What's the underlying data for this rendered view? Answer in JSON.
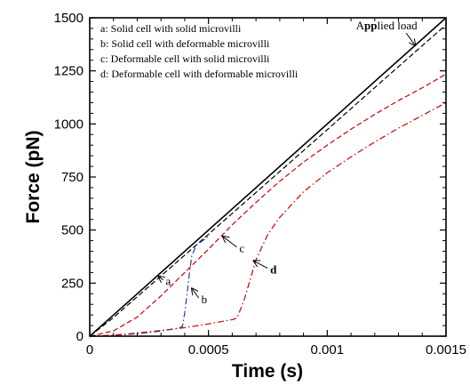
{
  "chart_data": {
    "type": "line",
    "title": "",
    "xlabel": "Time (s)",
    "ylabel": "Force (pN)",
    "xlim": [
      0,
      0.0015
    ],
    "ylim": [
      0,
      1500
    ],
    "grid": false,
    "legend_placement": "top-left",
    "x_ticks": [
      {
        "value": 0,
        "label": "0"
      },
      {
        "value": 0.0005,
        "label": "0.0005"
      },
      {
        "value": 0.001,
        "label": "0.001"
      },
      {
        "value": 0.0015,
        "label": "0.0015"
      }
    ],
    "y_ticks": [
      {
        "value": 0,
        "label": "0"
      },
      {
        "value": 250,
        "label": "250"
      },
      {
        "value": 500,
        "label": "500"
      },
      {
        "value": 750,
        "label": "750"
      },
      {
        "value": 1000,
        "label": "1000"
      },
      {
        "value": 1250,
        "label": "1250"
      },
      {
        "value": 1500,
        "label": "1500"
      }
    ],
    "legend": [
      "a: Solid cell with solid microvilli",
      "b: Solid cell with deformable microvilli",
      "c: Deformable cell with solid microvilli",
      "d: Deformable cell with deformable microvilli"
    ],
    "series": [
      {
        "name": "Applied load",
        "color": "#000000",
        "dash": "solid",
        "x": [
          0,
          0.0015
        ],
        "y": [
          0,
          1500
        ]
      },
      {
        "name": "a",
        "color": "#000000",
        "dash": "dashed",
        "x": [
          0,
          0.0001,
          0.0002,
          0.0003,
          0.0004,
          0.0005,
          0.0007,
          0.001,
          0.0013,
          0.0015
        ],
        "y": [
          0,
          88,
          186,
          284,
          382,
          480,
          677,
          973,
          1270,
          1467
        ]
      },
      {
        "name": "b",
        "color": "#1f3fa0",
        "dash": "dashdot",
        "x": [
          0,
          0.0001,
          0.0002,
          0.0003,
          0.00036,
          0.00039,
          0.0004,
          0.00041,
          0.00042,
          0.00043,
          0.00045,
          0.0005
        ],
        "y": [
          0,
          3,
          12,
          24,
          35,
          45,
          110,
          200,
          300,
          380,
          430,
          470
        ]
      },
      {
        "name": "c",
        "color": "#cc0000",
        "dash": "dashed",
        "x": [
          0,
          0.0001,
          0.0002,
          0.0003,
          0.0004,
          0.0005,
          0.0006,
          0.0007,
          0.0008,
          0.0009,
          0.001,
          0.0011,
          0.0012,
          0.0013,
          0.0014,
          0.0015
        ],
        "y": [
          0,
          25,
          90,
          190,
          300,
          410,
          525,
          630,
          730,
          820,
          900,
          975,
          1045,
          1110,
          1170,
          1235
        ]
      },
      {
        "name": "d",
        "color": "#cc0000",
        "dash": "dashdot",
        "x": [
          0,
          0.0001,
          0.0002,
          0.0003,
          0.0004,
          0.0005,
          0.0006,
          0.00062,
          0.00065,
          0.0007,
          0.00075,
          0.0008,
          0.00085,
          0.0009,
          0.001,
          0.0011,
          0.0012,
          0.0013,
          0.0014,
          0.0015
        ],
        "y": [
          0,
          5,
          15,
          27,
          40,
          58,
          78,
          85,
          170,
          360,
          480,
          560,
          620,
          680,
          770,
          845,
          915,
          980,
          1040,
          1100
        ]
      }
    ],
    "annotations": [
      {
        "text": "Applied load",
        "bold_part": "pp",
        "x": 0.00125,
        "y": 1445,
        "arrow_to": [
          0.00137,
          1370
        ]
      },
      {
        "text": "a",
        "x": 0.00032,
        "y": 240,
        "arrow_to": [
          0.00029,
          282
        ]
      },
      {
        "text": "b",
        "x": 0.00047,
        "y": 155,
        "arrow_to": [
          0.00043,
          225
        ]
      },
      {
        "text": "c",
        "x": 0.00063,
        "y": 395,
        "arrow_to": [
          0.00056,
          470
        ]
      },
      {
        "text": "d",
        "x": 0.00076,
        "y": 295,
        "arrow_to": [
          0.00069,
          355
        ]
      }
    ]
  }
}
